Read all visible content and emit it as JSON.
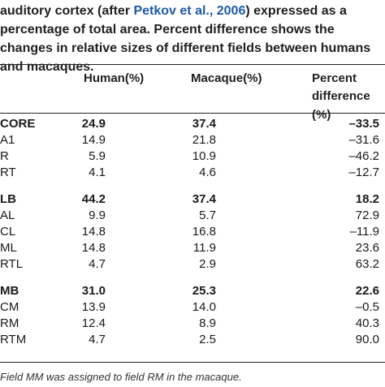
{
  "caption": {
    "before_link": "auditory cortex (after ",
    "link": "Petkov et al., 2006",
    "after_link": ") expressed as a percentage of total area. Percent difference shows the changes in relative sizes of different fields between humans and macaques."
  },
  "headers": {
    "human": "Human(%)",
    "macaque": "Macaque(%)",
    "percent_line1": "Percent",
    "percent_line2": "difference (%)"
  },
  "rows": [
    {
      "name": "CORE",
      "human": "24.9",
      "macaque": "37.4",
      "percent": "–33.5",
      "bold": true
    },
    {
      "name": "A1",
      "human": "14.9",
      "macaque": "21.8",
      "percent": "–31.6",
      "bold": false
    },
    {
      "name": "R",
      "human": "5.9",
      "macaque": "10.9",
      "percent": "–46.2",
      "bold": false
    },
    {
      "name": "RT",
      "human": "4.1",
      "macaque": "4.6",
      "percent": "–12.7",
      "bold": false
    },
    {
      "name": "LB",
      "human": "44.2",
      "macaque": "37.4",
      "percent": "18.2",
      "bold": true
    },
    {
      "name": "AL",
      "human": "9.9",
      "macaque": "5.7",
      "percent": "72.9",
      "bold": false
    },
    {
      "name": "CL",
      "human": "14.8",
      "macaque": "16.8",
      "percent": "–11.9",
      "bold": false
    },
    {
      "name": "ML",
      "human": "14.8",
      "macaque": "11.9",
      "percent": "23.6",
      "bold": false
    },
    {
      "name": "RTL",
      "human": "4.7",
      "macaque": "2.9",
      "percent": "63.2",
      "bold": false
    },
    {
      "name": "MB",
      "human": "31.0",
      "macaque": "25.3",
      "percent": "22.6",
      "bold": true
    },
    {
      "name": "CM",
      "human": "13.9",
      "macaque": "14.0",
      "percent": "–0.5",
      "bold": false
    },
    {
      "name": "RM",
      "human": "12.4",
      "macaque": "8.9",
      "percent": "40.3",
      "bold": false
    },
    {
      "name": "RTM",
      "human": "4.7",
      "macaque": "2.5",
      "percent": "90.0",
      "bold": false
    }
  ],
  "footnote": "Field MM was assigned to field RM in the macaque."
}
